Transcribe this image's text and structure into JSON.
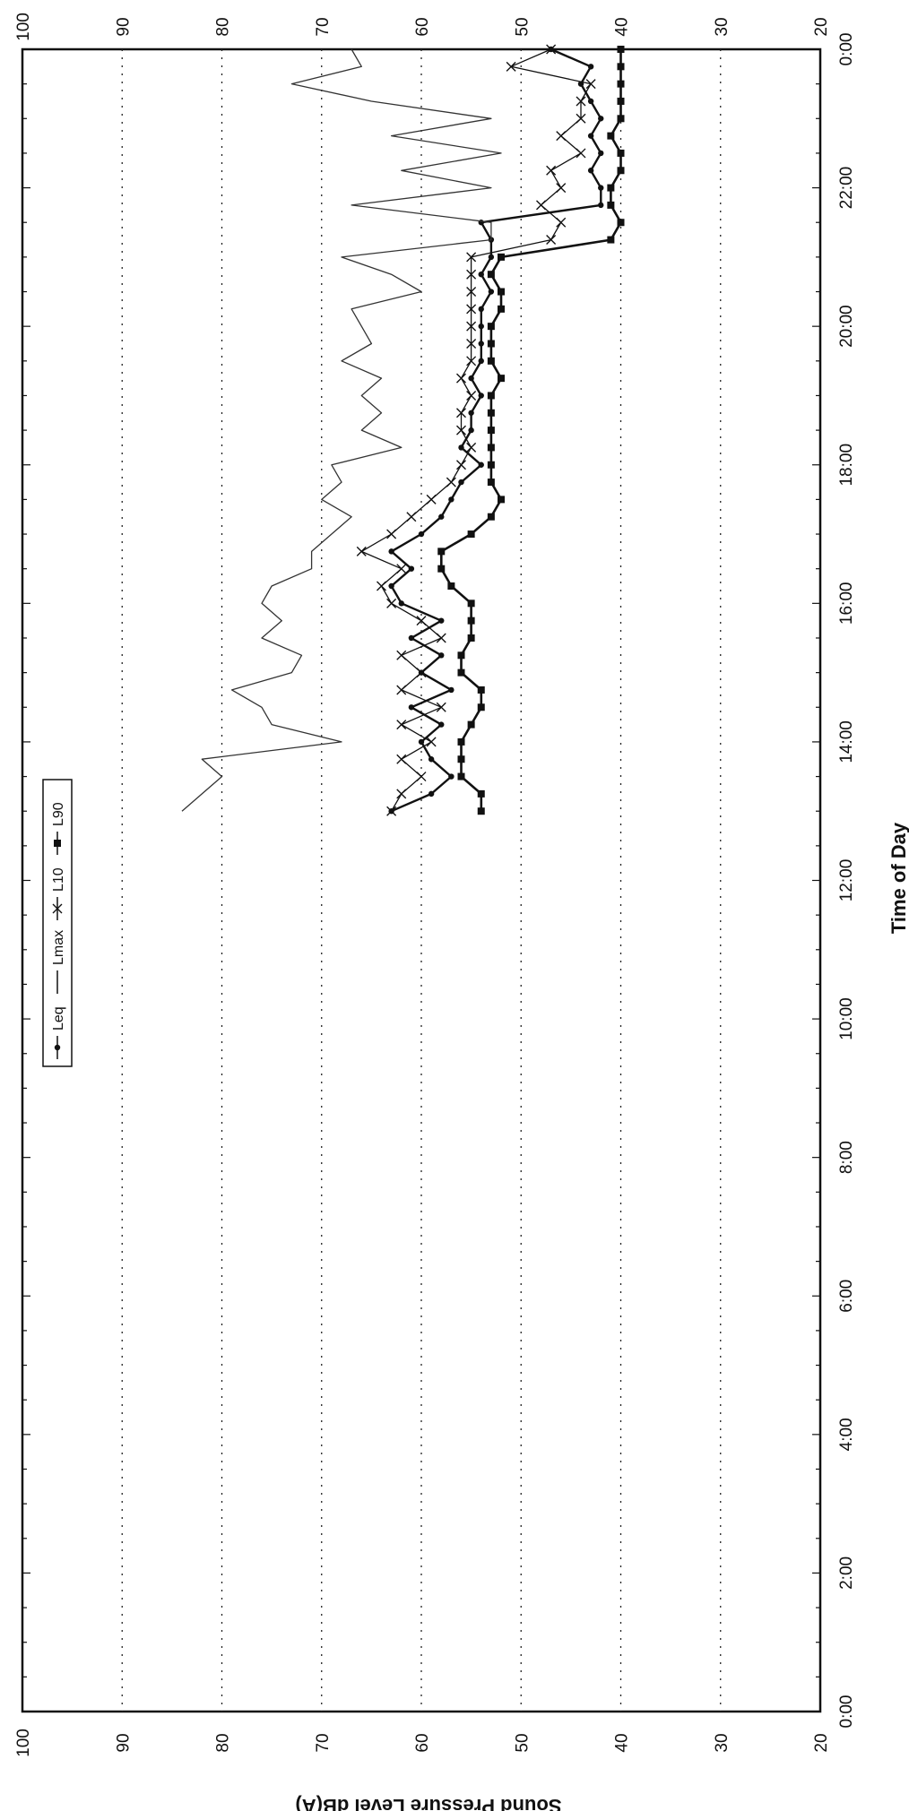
{
  "chart_data": {
    "type": "line",
    "title": "",
    "xlabel": "Time of Day",
    "ylabel": "Sound Pressure Level dB(A)",
    "x_tick_labels": [
      "0:00",
      "2:00",
      "4:00",
      "6:00",
      "8:00",
      "10:00",
      "12:00",
      "14:00",
      "16:00",
      "18:00",
      "20:00",
      "22:00",
      "0:00"
    ],
    "y_tick_labels": [
      "20",
      "30",
      "40",
      "50",
      "60",
      "70",
      "80",
      "90",
      "100"
    ],
    "xlim_hours": [
      0,
      24
    ],
    "ylim": [
      20,
      100
    ],
    "y_gridlines": [
      30,
      40,
      50,
      60,
      70,
      80,
      90
    ],
    "grid": "dotted horizontal",
    "legend_position": "top-left",
    "series": [
      {
        "name": "Leq",
        "color": "#111111",
        "x": [
          13.0,
          13.25,
          13.5,
          13.75,
          14.0,
          14.25,
          14.5,
          14.75,
          15.0,
          15.25,
          15.5,
          15.75,
          16.0,
          16.25,
          16.5,
          16.75,
          17.0,
          17.25,
          17.5,
          17.75,
          18.0,
          18.25,
          18.5,
          18.75,
          19.0,
          19.25,
          19.5,
          19.75,
          20.0,
          20.25,
          20.5,
          20.75,
          21.0,
          21.25,
          21.5,
          21.75,
          22.0,
          22.25,
          22.5,
          22.75,
          23.0,
          23.25,
          23.5,
          23.75,
          24.0
        ],
        "y": [
          63,
          59,
          57,
          59,
          60,
          58,
          61,
          57,
          60,
          58,
          61,
          58,
          62,
          63,
          61,
          63,
          60,
          58,
          57,
          56,
          54,
          56,
          55,
          55,
          54,
          55,
          54,
          54,
          54,
          54,
          53,
          54,
          53,
          53,
          54,
          42,
          42,
          43,
          42,
          43,
          42,
          43,
          44,
          43,
          47
        ]
      },
      {
        "name": "Lmax",
        "color": "#333333",
        "x": [
          13.0,
          13.25,
          13.5,
          13.75,
          14.0,
          14.25,
          14.5,
          14.75,
          15.0,
          15.25,
          15.5,
          15.75,
          16.0,
          16.25,
          16.5,
          16.75,
          17.0,
          17.25,
          17.5,
          17.75,
          18.0,
          18.25,
          18.5,
          18.75,
          19.0,
          19.25,
          19.5,
          19.75,
          20.0,
          20.25,
          20.5,
          20.75,
          21.0,
          21.25,
          21.5,
          21.75,
          22.0,
          22.25,
          22.5,
          22.75,
          23.0,
          23.25,
          23.5,
          23.75,
          24.0
        ],
        "y": [
          84,
          82,
          80,
          82,
          68,
          75,
          76,
          79,
          73,
          72,
          76,
          74,
          76,
          75,
          71,
          71,
          69,
          67,
          70,
          68,
          69,
          62,
          66,
          64,
          66,
          64,
          68,
          65,
          66,
          67,
          60,
          63,
          68,
          53,
          53,
          67,
          53,
          62,
          52,
          63,
          53,
          65,
          73,
          66,
          67
        ]
      },
      {
        "name": "L10",
        "color": "#111111",
        "x": [
          13.0,
          13.25,
          13.5,
          13.75,
          14.0,
          14.25,
          14.5,
          14.75,
          15.0,
          15.25,
          15.5,
          15.75,
          16.0,
          16.25,
          16.5,
          16.75,
          17.0,
          17.25,
          17.5,
          17.75,
          18.0,
          18.25,
          18.5,
          18.75,
          19.0,
          19.25,
          19.5,
          19.75,
          20.0,
          20.25,
          20.5,
          20.75,
          21.0,
          21.25,
          21.5,
          21.75,
          22.0,
          22.25,
          22.5,
          22.75,
          23.0,
          23.25,
          23.5,
          23.75,
          24.0
        ],
        "y": [
          63,
          62,
          60,
          62,
          59,
          62,
          58,
          62,
          60,
          62,
          58,
          60,
          63,
          64,
          62,
          66,
          63,
          61,
          59,
          57,
          56,
          55,
          56,
          56,
          55,
          56,
          55,
          55,
          55,
          55,
          55,
          55,
          55,
          47,
          46,
          48,
          46,
          47,
          44,
          46,
          44,
          44,
          43,
          51,
          47
        ]
      },
      {
        "name": "L90",
        "color": "#111111",
        "x": [
          13.0,
          13.25,
          13.5,
          13.75,
          14.0,
          14.25,
          14.5,
          14.75,
          15.0,
          15.25,
          15.5,
          15.75,
          16.0,
          16.25,
          16.5,
          16.75,
          17.0,
          17.25,
          17.5,
          17.75,
          18.0,
          18.25,
          18.5,
          18.75,
          19.0,
          19.25,
          19.5,
          19.75,
          20.0,
          20.25,
          20.5,
          20.75,
          21.0,
          21.25,
          21.5,
          21.75,
          22.0,
          22.25,
          22.5,
          22.75,
          23.0,
          23.25,
          23.5,
          23.75,
          24.0
        ],
        "y": [
          54,
          54,
          56,
          56,
          56,
          55,
          54,
          54,
          56,
          56,
          55,
          55,
          55,
          57,
          58,
          58,
          55,
          53,
          52,
          53,
          53,
          53,
          53,
          53,
          53,
          52,
          53,
          53,
          53,
          52,
          52,
          53,
          52,
          41,
          40,
          41,
          41,
          40,
          40,
          41,
          40,
          40,
          40,
          40,
          40
        ]
      }
    ]
  }
}
